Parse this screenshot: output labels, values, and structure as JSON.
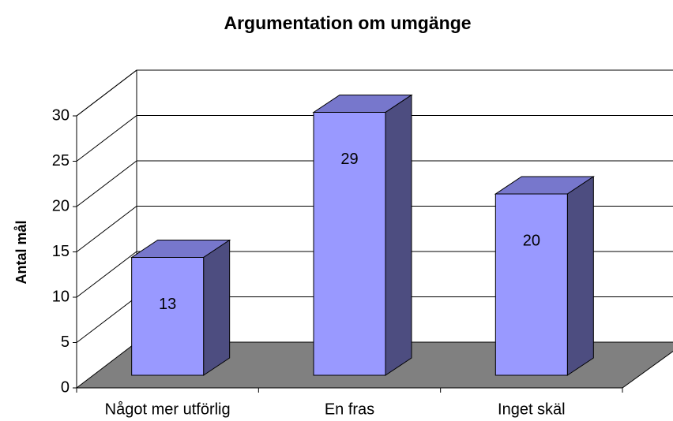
{
  "chart_data": {
    "type": "bar3d",
    "title": "Argumentation om umgänge",
    "ylabel": "Antal mål",
    "categories": [
      "Något mer utförlig",
      "En fras",
      "Inget skäl"
    ],
    "values": [
      13,
      29,
      20
    ],
    "color": "#9999ff",
    "ylim": [
      0,
      30
    ],
    "yticks": [
      0,
      5,
      10,
      15,
      20,
      25,
      30
    ],
    "grid": true
  }
}
